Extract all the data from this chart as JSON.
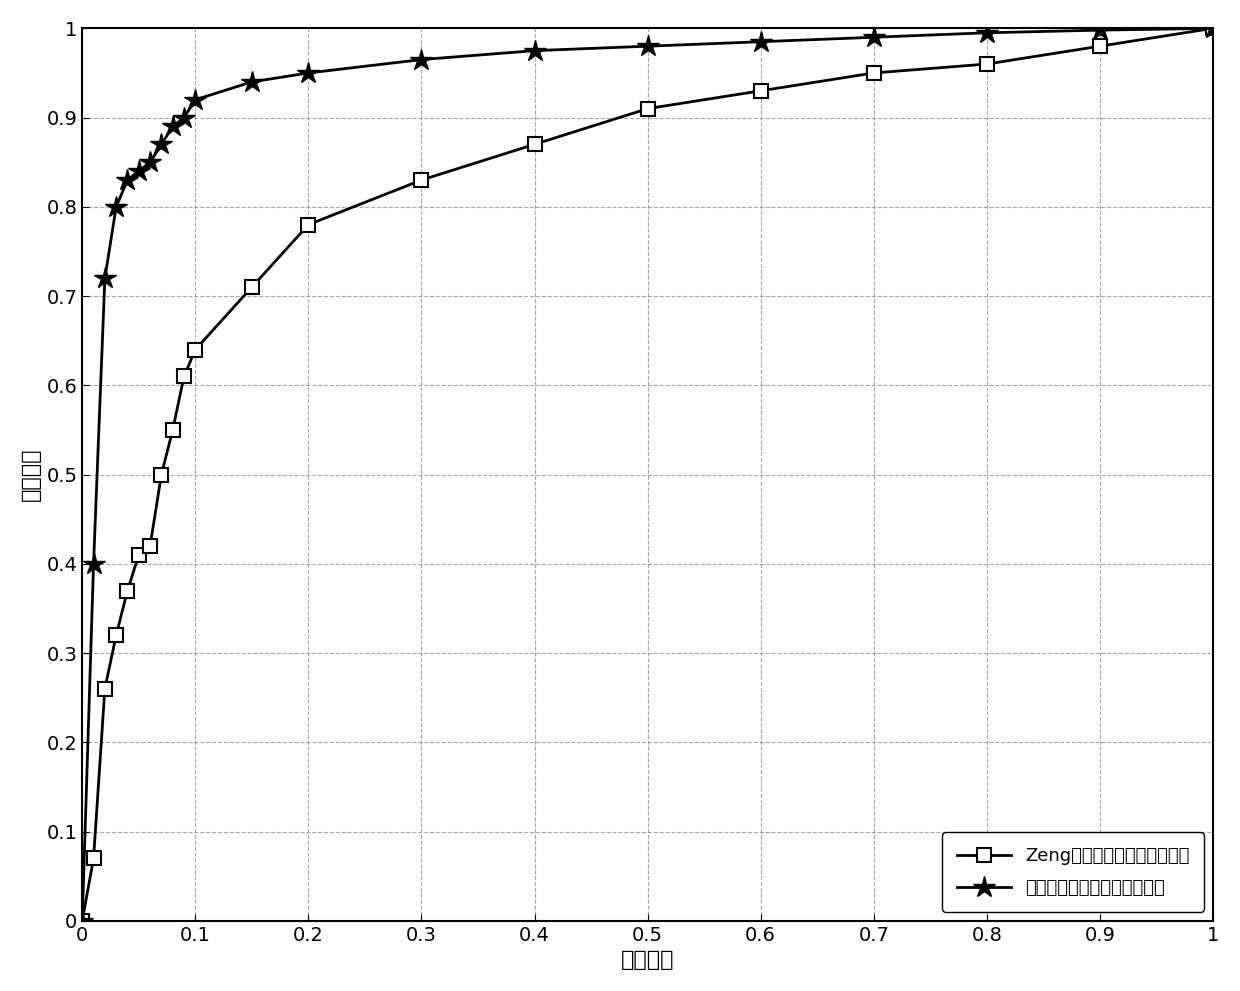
{
  "series1_label": "Zeng等人提出的频谱感知方法",
  "series2_label": "本发明所提出的频谱感知方法",
  "series1_x": [
    0.0,
    0.01,
    0.02,
    0.03,
    0.04,
    0.05,
    0.06,
    0.07,
    0.08,
    0.09,
    0.1,
    0.15,
    0.2,
    0.3,
    0.4,
    0.5,
    0.6,
    0.7,
    0.8,
    0.9,
    1.0
  ],
  "series1_y": [
    0.0,
    0.07,
    0.26,
    0.32,
    0.37,
    0.41,
    0.42,
    0.5,
    0.55,
    0.61,
    0.64,
    0.71,
    0.78,
    0.83,
    0.87,
    0.91,
    0.93,
    0.95,
    0.96,
    0.98,
    1.0
  ],
  "series2_x": [
    0.0,
    0.01,
    0.02,
    0.03,
    0.04,
    0.05,
    0.06,
    0.07,
    0.08,
    0.09,
    0.1,
    0.15,
    0.2,
    0.3,
    0.4,
    0.5,
    0.6,
    0.7,
    0.8,
    0.9,
    1.0
  ],
  "series2_y": [
    0.0,
    0.4,
    0.72,
    0.8,
    0.83,
    0.84,
    0.85,
    0.87,
    0.89,
    0.9,
    0.92,
    0.94,
    0.95,
    0.965,
    0.975,
    0.98,
    0.985,
    0.99,
    0.995,
    0.998,
    1.0
  ],
  "xlabel": "虚警概率",
  "ylabel": "检测概率",
  "xlim": [
    0,
    1
  ],
  "ylim": [
    0,
    1
  ],
  "xticks": [
    0,
    0.1,
    0.2,
    0.3,
    0.4,
    0.5,
    0.6,
    0.7,
    0.8,
    0.9,
    1.0
  ],
  "yticks": [
    0,
    0.1,
    0.2,
    0.3,
    0.4,
    0.5,
    0.6,
    0.7,
    0.8,
    0.9,
    1.0
  ],
  "line_color": "#000000",
  "background_color": "#ffffff",
  "grid_color": "#808080",
  "legend_loc": "lower right",
  "marker1": "s",
  "marker2": "*",
  "marker_size1": 10,
  "marker_size2": 16,
  "linewidth": 2.0
}
